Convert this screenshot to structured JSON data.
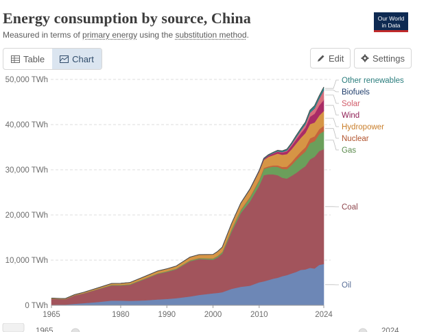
{
  "header": {
    "title": "Energy consumption by source, China",
    "subtitle_parts": [
      "Measured in terms of ",
      "primary energy",
      " using the ",
      "substitution method",
      "."
    ],
    "logo_line1": "Our World",
    "logo_line2": "in Data"
  },
  "tabs": [
    {
      "label": "Table",
      "icon": "table-icon",
      "active": false
    },
    {
      "label": "Chart",
      "icon": "chart-icon",
      "active": true
    }
  ],
  "toolbar": {
    "edit_label": "Edit",
    "settings_label": "Settings"
  },
  "timeline": {
    "start_label": "1965",
    "end_label": "2024"
  },
  "chart_data": {
    "type": "area",
    "stacked": true,
    "title": "Energy consumption by source, China",
    "subtitle": "Measured in terms of primary energy using the substitution method.",
    "unit": "TWh",
    "ylim": [
      0,
      50000
    ],
    "y_ticks": [
      0,
      10000,
      20000,
      30000,
      40000,
      50000
    ],
    "y_tick_labels": [
      "0 TWh",
      "10,000 TWh",
      "20,000 TWh",
      "30,000 TWh",
      "40,000 TWh",
      "50,000 TWh"
    ],
    "x_ticks": [
      1965,
      1980,
      1990,
      2000,
      2010,
      2024
    ],
    "x_tick_labels": [
      "1965",
      "1980",
      "1990",
      "2000",
      "2010",
      "2024"
    ],
    "xlim": [
      1965,
      2024
    ],
    "grid": true,
    "legend": "right-inline",
    "x": [
      1965,
      1967,
      1968,
      1970,
      1972,
      1975,
      1978,
      1980,
      1982,
      1985,
      1988,
      1990,
      1992,
      1995,
      1997,
      2000,
      2001,
      2002,
      2004,
      2006,
      2008,
      2010,
      2011,
      2012,
      2013,
      2014,
      2015,
      2016,
      2017,
      2018,
      2019,
      2020,
      2021,
      2022,
      2023,
      2024
    ],
    "series": [
      {
        "name": "Oil",
        "color": "#6d87b6",
        "values": [
          130,
          160,
          160,
          330,
          480,
          720,
          1050,
          1050,
          1000,
          1080,
          1300,
          1400,
          1580,
          1950,
          2300,
          2650,
          2750,
          2900,
          3650,
          4100,
          4350,
          5100,
          5300,
          5600,
          5900,
          6100,
          6450,
          6700,
          7050,
          7400,
          7850,
          7950,
          8300,
          8150,
          8950,
          9150
        ]
      },
      {
        "name": "Coal",
        "color": "#a2545c",
        "values": [
          1320,
          1200,
          1180,
          1850,
          2150,
          2800,
          3350,
          3350,
          3550,
          4650,
          5650,
          6000,
          6380,
          7800,
          7950,
          7450,
          7850,
          8550,
          12600,
          16300,
          18650,
          21400,
          23500,
          23400,
          23100,
          22700,
          21800,
          21350,
          21600,
          21900,
          22250,
          22850,
          24000,
          24750,
          25200,
          25400
        ]
      },
      {
        "name": "Gas",
        "color": "#6b9f5b",
        "values": [
          30,
          30,
          30,
          40,
          60,
          80,
          130,
          130,
          130,
          130,
          140,
          160,
          160,
          180,
          200,
          250,
          300,
          330,
          450,
          600,
          850,
          1100,
          1400,
          1500,
          1700,
          1850,
          1950,
          2100,
          2400,
          2850,
          3050,
          3250,
          3600,
          3450,
          3750,
          4000
        ]
      },
      {
        "name": "Nuclear",
        "color": "#c4633d",
        "values": [
          0,
          0,
          0,
          0,
          0,
          0,
          0,
          0,
          0,
          0,
          0,
          0,
          0,
          30,
          40,
          50,
          60,
          70,
          130,
          160,
          180,
          200,
          230,
          260,
          280,
          340,
          430,
          530,
          640,
          750,
          860,
          940,
          1050,
          1070,
          1100,
          1180
        ]
      },
      {
        "name": "Hydropower",
        "color": "#d69545",
        "values": [
          110,
          120,
          130,
          150,
          200,
          250,
          300,
          340,
          370,
          450,
          500,
          520,
          560,
          700,
          750,
          850,
          950,
          1000,
          1200,
          1380,
          1600,
          1800,
          1750,
          2100,
          2250,
          2600,
          2700,
          2800,
          2850,
          2900,
          3050,
          3150,
          3150,
          3050,
          3000,
          3300
        ]
      },
      {
        "name": "Wind",
        "color": "#a92c66",
        "values": [
          0,
          0,
          0,
          0,
          0,
          0,
          0,
          0,
          0,
          0,
          0,
          0,
          0,
          0,
          0,
          0,
          0,
          0,
          5,
          10,
          40,
          120,
          200,
          280,
          380,
          420,
          480,
          600,
          750,
          900,
          1000,
          1180,
          1650,
          1950,
          2250,
          2450
        ]
      },
      {
        "name": "Solar",
        "color": "#d86f7c",
        "values": [
          0,
          0,
          0,
          0,
          0,
          0,
          0,
          0,
          0,
          0,
          0,
          0,
          0,
          0,
          0,
          0,
          0,
          0,
          0,
          0,
          0,
          5,
          10,
          20,
          40,
          60,
          100,
          170,
          300,
          450,
          580,
          700,
          850,
          1150,
          1450,
          2100
        ]
      },
      {
        "name": "Biofuels",
        "color": "#3a5a8a",
        "values": [
          0,
          0,
          0,
          0,
          0,
          0,
          0,
          0,
          0,
          0,
          0,
          0,
          0,
          0,
          0,
          0,
          2,
          3,
          5,
          10,
          15,
          20,
          25,
          30,
          35,
          40,
          45,
          50,
          60,
          70,
          75,
          80,
          90,
          95,
          100,
          110
        ]
      },
      {
        "name": "Other renewables",
        "color": "#2f8a8a",
        "values": [
          0,
          0,
          0,
          0,
          0,
          0,
          0,
          0,
          0,
          0,
          0,
          0,
          0,
          0,
          0,
          10,
          20,
          30,
          40,
          60,
          80,
          100,
          130,
          150,
          170,
          200,
          240,
          260,
          280,
          330,
          380,
          420,
          480,
          520,
          560,
          620
        ]
      }
    ],
    "series_label_colors": {
      "Oil": "#5a6f98",
      "Coal": "#8e454c",
      "Gas": "#5a8a4c",
      "Nuclear": "#b0512c",
      "Hydropower": "#c97e2a",
      "Wind": "#8f1f55",
      "Solar": "#d15b69",
      "Biofuels": "#1f3d6b",
      "Other renewables": "#2a7d7d"
    }
  }
}
